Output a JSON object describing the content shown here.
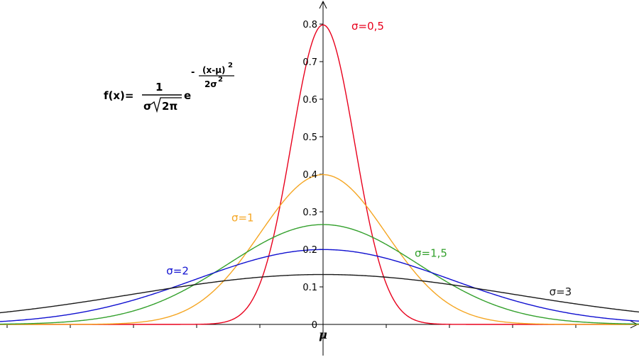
{
  "chart_data": {
    "type": "line",
    "title": "",
    "xlabel": "μ",
    "ylabel": "",
    "x": [
      -4.5,
      -4,
      -3.5,
      -3,
      -2.5,
      -2,
      -1.5,
      -1,
      -0.5,
      0,
      0.5,
      1,
      1.5,
      2,
      2.5,
      3,
      3.5,
      4,
      4.5
    ],
    "xlim": [
      -5.1,
      5.0
    ],
    "ylim": [
      -0.05,
      0.85
    ],
    "yticks": [
      0,
      0.1,
      0.2,
      0.3,
      0.4,
      0.5,
      0.6,
      0.7,
      0.8
    ],
    "ytick_labels": [
      "0",
      "0.1",
      "0.2",
      "0.3",
      "0.4",
      "0.5",
      "0.6",
      "0.7",
      "0.8"
    ],
    "grid": false,
    "series": [
      {
        "name": "σ=0,5",
        "color": "#e8001c",
        "values": [
          0.0,
          0.0,
          0.0,
          0.0,
          0.0,
          0.0003,
          0.0089,
          0.108,
          0.484,
          0.798,
          0.484,
          0.108,
          0.0089,
          0.0003,
          0.0,
          0.0,
          0.0,
          0.0,
          0.0
        ]
      },
      {
        "name": "σ=1",
        "color": "#f5a623",
        "values": [
          0.0,
          0.0001,
          0.0009,
          0.0044,
          0.0175,
          0.054,
          0.1295,
          0.242,
          0.352,
          0.399,
          0.352,
          0.242,
          0.1295,
          0.054,
          0.0175,
          0.0044,
          0.0009,
          0.0001,
          0.0
        ]
      },
      {
        "name": "σ=1,5",
        "color": "#33a02c",
        "values": [
          0.0029,
          0.0076,
          0.0175,
          0.036,
          0.0664,
          0.1093,
          0.1613,
          0.213,
          0.2516,
          0.266,
          0.2516,
          0.213,
          0.1613,
          0.1093,
          0.0664,
          0.036,
          0.0175,
          0.0076,
          0.0029
        ]
      },
      {
        "name": "σ=2",
        "color": "#1010d0",
        "values": [
          0.0159,
          0.027,
          0.0431,
          0.0648,
          0.0913,
          0.121,
          0.1506,
          0.1761,
          0.1933,
          0.1995,
          0.1933,
          0.1761,
          0.1506,
          0.121,
          0.0913,
          0.0648,
          0.0431,
          0.027,
          0.0159
        ]
      },
      {
        "name": "σ=3",
        "color": "#1a1a1a",
        "values": [
          0.0432,
          0.055,
          0.0673,
          0.0807,
          0.094,
          0.1065,
          0.1174,
          0.126,
          0.1311,
          0.133,
          0.1311,
          0.126,
          0.1174,
          0.1065,
          0.094,
          0.0807,
          0.0673,
          0.055,
          0.0432
        ]
      }
    ],
    "formula": {
      "lhs": "f(x)=",
      "numerator": "1",
      "denominator_sigma": "σ",
      "denominator_root": "2π",
      "base": "e",
      "exp_sign": "-",
      "exp_numerator": "(x-μ)",
      "exp_numerator_power": "2",
      "exp_denominator": "2σ",
      "exp_denominator_power": "2"
    }
  }
}
